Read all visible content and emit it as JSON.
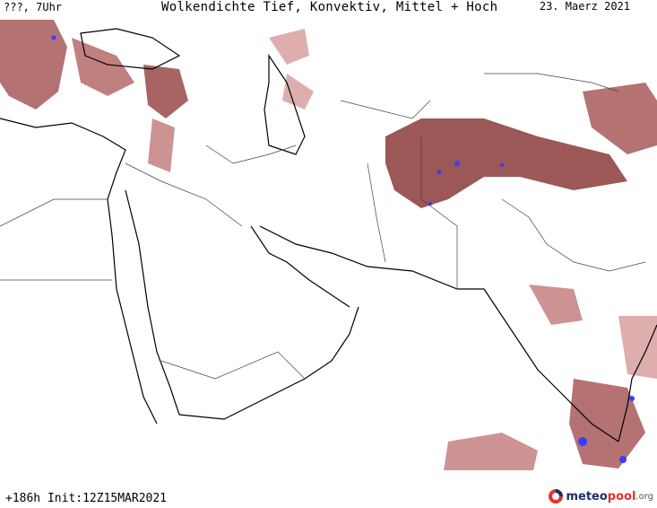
{
  "header": {
    "left_label": "???, 7Uhr",
    "title": "Wolkendichte  Tief, Konvektiv, Mittel + Hoch",
    "date": "23. Maerz 2021"
  },
  "footer": {
    "run_info": "+186h Init:12Z15MAR2021",
    "brand_prefix": "meteo",
    "brand_suffix": "pool",
    "brand_tld": ".org"
  },
  "map": {
    "colors": {
      "cloud_dark": "#8b3a3a",
      "cloud_light": "#d9a0a0",
      "convective": "#3b3bff",
      "coastline": "#000000",
      "border": "#333333"
    },
    "icons": [
      "meteopool-logo-icon"
    ]
  }
}
